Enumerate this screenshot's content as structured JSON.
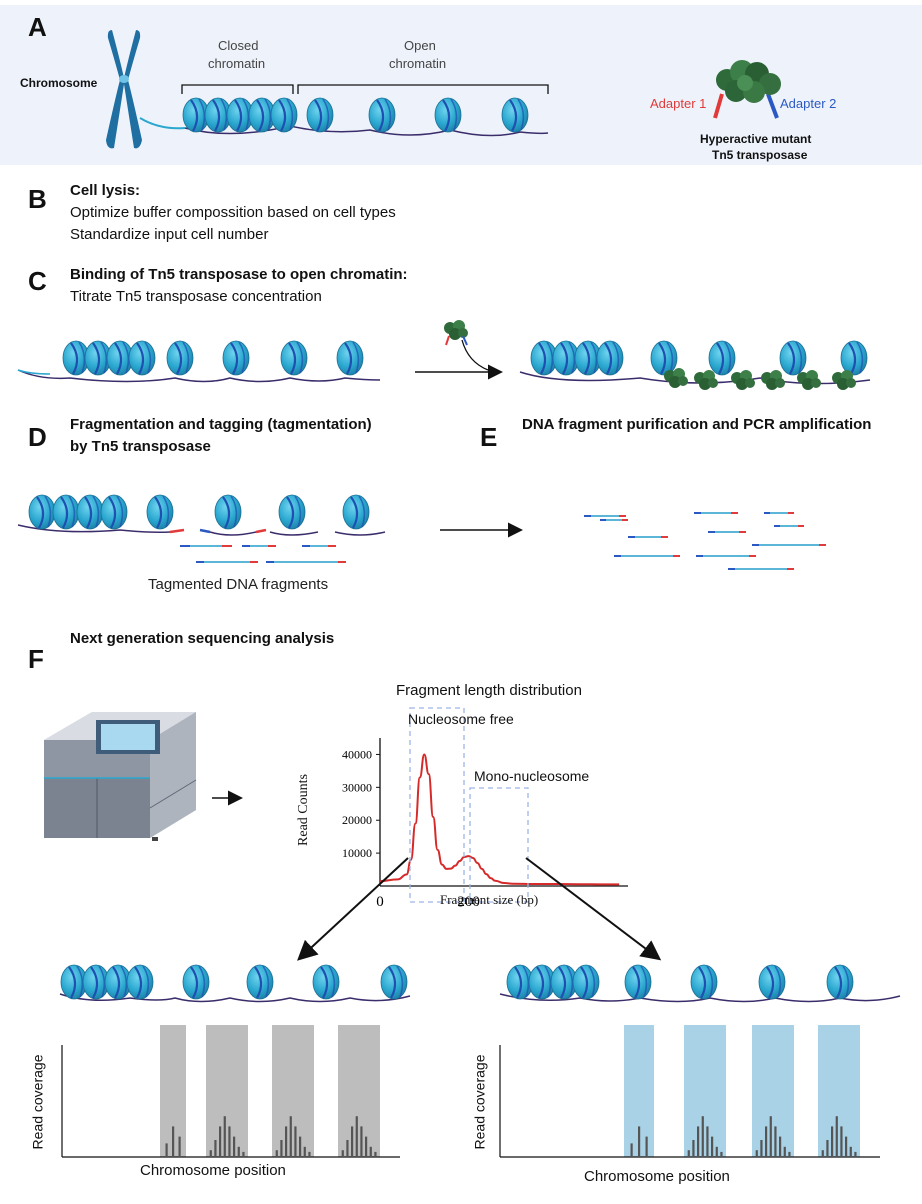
{
  "panel_a": {
    "letter": "A",
    "chromosome_label": "Chromosome",
    "closed_label_1": "Closed",
    "closed_label_2": "chromatin",
    "open_label_1": "Open",
    "open_label_2": "chromatin",
    "adapter1": "Adapter 1",
    "adapter2": "Adapter 2",
    "tn5_label_1": "Hyperactive mutant",
    "tn5_label_2": "Tn5 transposase",
    "colors": {
      "background": "#eef3fb",
      "adapter1": "#e03a3a",
      "adapter2": "#2b59c3",
      "nucleosome": "#2aa7cf",
      "tn5": "#2f6b3a"
    }
  },
  "panel_b": {
    "letter": "B",
    "title": "Cell lysis:",
    "line1": "Optimize buffer compossition based on cell types",
    "line2": "Standardize input cell number"
  },
  "panel_c": {
    "letter": "C",
    "title": "Binding of Tn5 transposase to open chromatin:",
    "line1": "Titrate Tn5 transposase concentration"
  },
  "panel_d": {
    "letter": "D",
    "title_1": "Fragmentation and tagging (tagmentation)",
    "title_2": "by Tn5 transposase",
    "fragments_label": "Tagmented DNA fragments"
  },
  "panel_e": {
    "letter": "E",
    "title": "DNA fragment purification and PCR amplification"
  },
  "panel_f": {
    "letter": "F",
    "title": "Next generation sequencing analysis",
    "left_track": {
      "ylabel": "Read coverage",
      "xlabel": "Chromosome position",
      "highlight_color": "#bdbdbd"
    },
    "right_track": {
      "ylabel": "Read coverage",
      "xlabel": "Chromosome position",
      "highlight_color": "#a9d2e6"
    }
  },
  "chart_data": {
    "type": "line",
    "title": "Fragment length distribution",
    "xlabel": "Fragment size (bp)",
    "ylabel": "Read Counts",
    "xlim": [
      0,
      560
    ],
    "ylim": [
      0,
      45000
    ],
    "xticks": [
      0,
      200
    ],
    "yticks": [
      10000,
      20000,
      30000,
      40000
    ],
    "annotations": [
      "Nucleosome free",
      "Mono-nucleosome"
    ],
    "series": [
      {
        "x": [
          0,
          40,
          60,
          70,
          80,
          90,
          100,
          110,
          120,
          130,
          140,
          150,
          160,
          170,
          180,
          190,
          200,
          210,
          220,
          230,
          240,
          250,
          260,
          280,
          300,
          350,
          400,
          450,
          500,
          540
        ],
        "y": [
          1500,
          2000,
          3500,
          8000,
          19000,
          33000,
          40000,
          34000,
          21000,
          11000,
          6500,
          5200,
          5300,
          6200,
          7600,
          8800,
          9100,
          8500,
          7000,
          5200,
          3600,
          2400,
          1600,
          900,
          700,
          600,
          600,
          550,
          500,
          500
        ],
        "color": "#d62a2a"
      }
    ]
  }
}
